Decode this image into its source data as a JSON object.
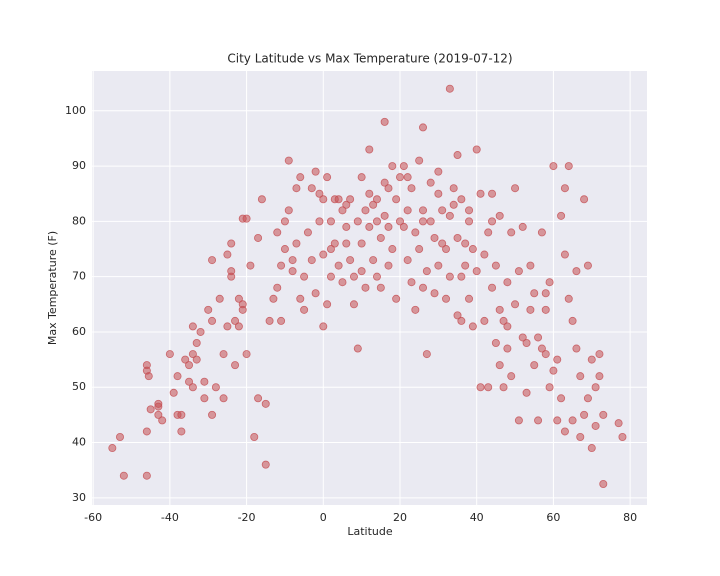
{
  "chart_data": {
    "type": "scatter",
    "title": "City Latitude vs Max Temperature (2019-07-12)",
    "xlabel": "Latitude",
    "ylabel": "Max Temperature (F)",
    "color": "#c44e52",
    "grid": true,
    "xlim": [
      -60.3,
      84.4
    ],
    "ylim": [
      28.7,
      107.2
    ],
    "xticks": [
      -60,
      -40,
      -20,
      0,
      20,
      40,
      60,
      80
    ],
    "yticks": [
      30,
      40,
      50,
      60,
      70,
      80,
      90,
      100
    ],
    "x": [
      -55,
      -53,
      -52,
      -46,
      -46,
      -46,
      -45.5,
      -46,
      -45,
      -43,
      -43,
      -42,
      -43,
      -40,
      -39,
      -38,
      -38,
      -37,
      -36,
      -35,
      -35,
      -34,
      -34,
      -34,
      -33,
      -33,
      -32,
      -31,
      -31,
      -30,
      -29,
      -29,
      -29,
      -28,
      -27,
      -26,
      -26,
      -25,
      -24,
      -24,
      -24,
      -23,
      -23,
      -22,
      -22,
      -21,
      -21,
      -21,
      -20,
      -20,
      -19,
      -18,
      -17,
      -17,
      -16,
      -15,
      -15,
      -14,
      -13,
      -12,
      -11,
      -11,
      -10,
      -10,
      -9,
      -9,
      -8,
      -8,
      -7,
      -7,
      -6,
      -6,
      -5,
      -5,
      -4,
      -3,
      -3,
      -2,
      -2,
      -1,
      -1,
      0,
      0,
      0,
      1,
      1,
      2,
      2,
      3,
      3,
      4,
      4,
      5,
      5,
      6,
      6,
      7,
      7,
      8,
      8,
      9,
      9,
      10,
      10,
      10,
      11,
      11,
      12,
      12,
      12,
      13,
      13,
      14,
      14,
      15,
      15,
      16,
      16,
      16,
      17,
      17,
      17,
      18,
      18,
      19,
      19,
      20,
      20,
      21,
      21,
      22,
      22,
      23,
      23,
      24,
      24,
      25,
      25,
      26,
      26,
      26,
      27,
      27,
      28,
      28,
      29,
      29,
      30,
      30,
      31,
      31,
      32,
      32,
      33,
      33,
      33,
      34,
      34,
      35,
      35,
      35,
      36,
      36,
      37,
      37,
      38,
      38,
      39,
      39,
      40,
      40,
      41,
      41,
      42,
      42,
      43,
      43,
      44,
      44,
      45,
      45,
      46,
      46,
      47,
      47,
      48,
      48,
      49,
      49,
      50,
      50,
      51,
      51,
      52,
      52,
      53,
      53,
      54,
      54,
      55,
      55,
      56,
      56,
      57,
      57,
      58,
      58,
      59,
      59,
      60,
      60,
      61,
      61,
      62,
      62,
      63,
      63,
      64,
      64,
      65,
      65,
      66,
      66,
      67,
      67,
      68,
      68,
      69,
      69,
      70,
      70,
      71,
      71,
      72,
      72,
      73,
      73,
      77,
      78,
      63,
      58,
      48,
      44,
      38,
      30,
      22,
      6,
      -12,
      -25,
      -37,
      2,
      14,
      26,
      36,
      46
    ],
    "y": [
      39,
      41,
      34,
      34,
      54,
      53,
      52,
      42,
      46,
      46.5,
      45,
      44,
      47,
      56,
      49,
      52,
      45,
      45,
      55,
      54,
      51,
      61,
      56,
      50,
      58,
      55,
      60,
      51,
      48,
      64,
      62,
      73,
      45,
      50,
      66,
      48,
      56,
      61,
      71,
      76,
      70,
      62,
      54,
      66,
      61,
      64,
      65,
      80.5,
      80.5,
      56,
      72,
      41,
      48,
      77,
      84,
      47,
      36,
      62,
      66,
      78,
      72,
      62,
      75,
      80,
      91,
      82,
      71,
      73,
      76,
      86,
      88,
      66,
      70,
      64,
      78,
      73,
      86,
      89,
      67,
      80,
      85,
      74,
      61,
      84,
      88,
      65,
      70,
      80,
      76,
      84,
      72,
      84,
      82,
      69,
      76,
      83,
      73,
      84,
      70,
      65,
      80,
      57,
      88,
      76,
      71,
      82,
      68,
      85,
      93,
      79,
      83,
      73,
      70,
      84,
      77,
      68,
      81,
      98,
      87,
      72,
      86,
      79,
      90,
      75,
      84,
      66,
      88,
      80,
      90,
      79,
      82,
      88,
      69,
      86,
      64,
      78,
      91,
      75,
      82,
      97,
      68,
      56,
      71,
      87,
      80,
      67,
      77,
      85,
      72,
      76,
      82,
      75,
      66,
      81,
      70,
      104,
      86,
      83,
      63,
      77,
      92,
      84,
      70,
      76,
      72,
      80,
      66,
      75,
      61,
      93,
      71,
      85,
      50,
      62,
      74,
      50,
      78,
      85,
      68,
      58,
      72,
      81,
      54,
      62,
      50,
      69,
      57,
      78,
      52,
      86,
      65,
      44,
      71,
      79,
      59,
      58,
      49,
      72,
      64,
      67,
      54,
      59,
      44,
      78,
      57,
      56,
      64,
      50,
      69,
      90,
      53,
      44,
      55,
      81,
      48,
      42,
      74,
      90,
      66,
      62,
      44,
      57,
      71,
      52,
      41,
      84,
      45,
      48,
      72,
      39,
      55,
      50,
      43,
      56,
      52,
      45,
      32.5,
      43.5,
      41,
      86,
      67,
      61,
      80,
      82,
      89,
      73,
      79,
      68,
      74,
      42,
      75,
      80,
      80,
      62,
      64
    ]
  }
}
